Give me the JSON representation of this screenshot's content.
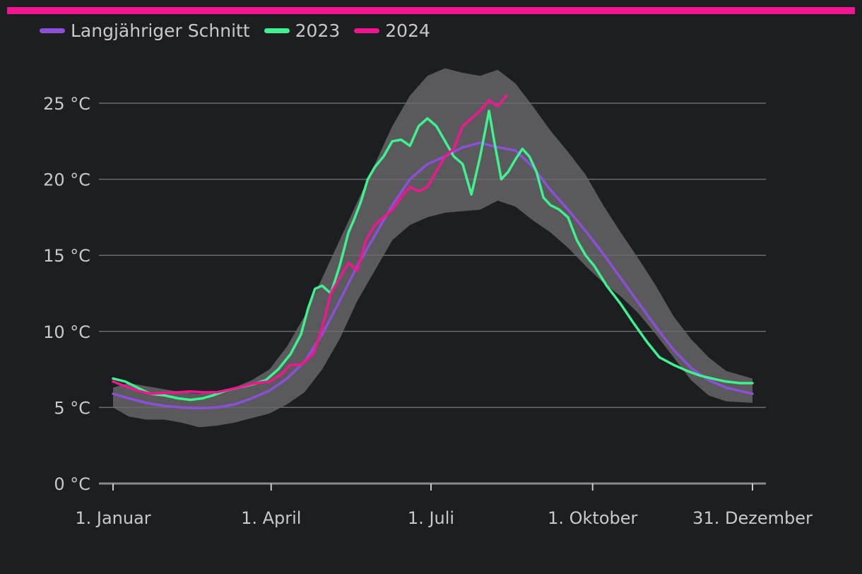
{
  "chart_data": {
    "type": "line",
    "title": "",
    "xlabel": "",
    "ylabel": "",
    "x_ticks": [
      {
        "label": "1. Januar",
        "day": 1
      },
      {
        "label": "1. April",
        "day": 91
      },
      {
        "label": "1. Juli",
        "day": 182
      },
      {
        "label": "1. Oktober",
        "day": 274
      },
      {
        "label": "31. Dezember",
        "day": 365
      }
    ],
    "y_ticks": [
      {
        "label": "0 °C",
        "value": 0
      },
      {
        "label": "5 °C",
        "value": 5
      },
      {
        "label": "10 °C",
        "value": 10
      },
      {
        "label": "15 °C",
        "value": 15
      },
      {
        "label": "20 °C",
        "value": 20
      },
      {
        "label": "25 °C",
        "value": 25
      }
    ],
    "xlim": [
      1,
      365
    ],
    "ylim": [
      0,
      25
    ],
    "grid": true,
    "legend_position": "top-left",
    "band": {
      "day": [
        1,
        10,
        20,
        30,
        40,
        50,
        60,
        70,
        80,
        90,
        100,
        110,
        120,
        130,
        140,
        150,
        160,
        170,
        180,
        190,
        200,
        210,
        220,
        230,
        240,
        250,
        260,
        270,
        280,
        290,
        300,
        310,
        320,
        330,
        340,
        350,
        365
      ],
      "upper": [
        6.3,
        6.6,
        6.4,
        6.2,
        6.0,
        5.9,
        6.0,
        6.3,
        6.8,
        7.5,
        9.0,
        11.0,
        13.5,
        16.0,
        18.5,
        21.0,
        23.5,
        25.5,
        26.8,
        27.3,
        27.0,
        26.8,
        27.2,
        26.3,
        24.8,
        23.2,
        21.8,
        20.3,
        18.3,
        16.5,
        14.8,
        13.0,
        11.0,
        9.5,
        8.3,
        7.4,
        6.9
      ],
      "lower": [
        5.0,
        4.4,
        4.2,
        4.2,
        4.0,
        3.7,
        3.8,
        4.0,
        4.3,
        4.6,
        5.2,
        6.0,
        7.5,
        9.5,
        12.0,
        14.0,
        16.0,
        17.0,
        17.5,
        17.8,
        17.9,
        18.0,
        18.6,
        18.2,
        17.3,
        16.5,
        15.5,
        14.3,
        13.2,
        12.3,
        11.2,
        9.8,
        8.3,
        6.8,
        5.8,
        5.4,
        5.3
      ]
    },
    "series": [
      {
        "name": "Langjähriger Schnitt",
        "color": "#8b4fd8",
        "day": [
          1,
          10,
          20,
          30,
          40,
          50,
          60,
          70,
          80,
          90,
          100,
          110,
          120,
          130,
          140,
          150,
          160,
          170,
          180,
          190,
          200,
          210,
          220,
          230,
          240,
          250,
          260,
          270,
          280,
          290,
          300,
          310,
          320,
          330,
          340,
          350,
          365
        ],
        "value": [
          5.9,
          5.6,
          5.3,
          5.1,
          5.0,
          4.95,
          5.0,
          5.2,
          5.6,
          6.1,
          6.9,
          8.0,
          9.8,
          12.0,
          14.3,
          16.3,
          18.3,
          20.0,
          21.0,
          21.5,
          22.1,
          22.4,
          22.1,
          21.9,
          20.8,
          19.3,
          18.0,
          16.6,
          15.1,
          13.5,
          11.9,
          10.3,
          8.8,
          7.6,
          6.8,
          6.3,
          5.9
        ]
      },
      {
        "name": "2023",
        "color": "#3ef28f",
        "day": [
          1,
          8,
          15,
          22,
          30,
          38,
          45,
          52,
          58,
          65,
          72,
          80,
          88,
          95,
          102,
          108,
          112,
          116,
          120,
          125,
          130,
          135,
          138,
          142,
          146,
          150,
          155,
          160,
          165,
          170,
          175,
          180,
          185,
          190,
          195,
          200,
          205,
          210,
          215,
          218,
          222,
          226,
          230,
          234,
          238,
          242,
          246,
          250,
          255,
          260,
          265,
          270,
          275,
          282,
          290,
          297,
          305,
          312,
          320,
          328,
          335,
          342,
          350,
          358,
          365
        ],
        "value": [
          6.9,
          6.7,
          6.3,
          5.9,
          5.8,
          5.6,
          5.5,
          5.6,
          5.8,
          6.1,
          6.3,
          6.5,
          6.8,
          7.5,
          8.5,
          9.8,
          11.5,
          12.8,
          13.0,
          12.5,
          14.3,
          16.5,
          17.3,
          18.5,
          20.0,
          20.8,
          21.5,
          22.5,
          22.6,
          22.2,
          23.5,
          24.0,
          23.5,
          22.5,
          21.5,
          21.0,
          19.0,
          21.5,
          24.5,
          22.5,
          20.0,
          20.5,
          21.3,
          22.0,
          21.5,
          20.5,
          18.8,
          18.3,
          18.0,
          17.5,
          16.0,
          15.0,
          14.3,
          13.0,
          11.8,
          10.6,
          9.3,
          8.3,
          7.8,
          7.4,
          7.1,
          6.9,
          6.7,
          6.6,
          6.6
        ]
      },
      {
        "name": "2024",
        "color": "#f0168f",
        "day": [
          1,
          8,
          15,
          22,
          30,
          38,
          45,
          52,
          60,
          68,
          75,
          82,
          90,
          97,
          102,
          108,
          115,
          120,
          125,
          130,
          135,
          140,
          145,
          150,
          155,
          160,
          165,
          170,
          175,
          180,
          185,
          190,
          195,
          200,
          205,
          210,
          215,
          220,
          225
        ],
        "value": [
          6.7,
          6.4,
          6.1,
          5.9,
          5.95,
          6.0,
          6.05,
          6.0,
          6.0,
          6.2,
          6.4,
          6.6,
          6.7,
          7.2,
          7.8,
          7.8,
          8.5,
          10.2,
          12.5,
          13.5,
          14.5,
          14.0,
          16.0,
          17.0,
          17.5,
          18.0,
          18.8,
          19.5,
          19.2,
          19.5,
          20.5,
          21.5,
          22.0,
          23.5,
          24.0,
          24.5,
          25.2,
          24.8,
          25.5
        ]
      }
    ]
  }
}
